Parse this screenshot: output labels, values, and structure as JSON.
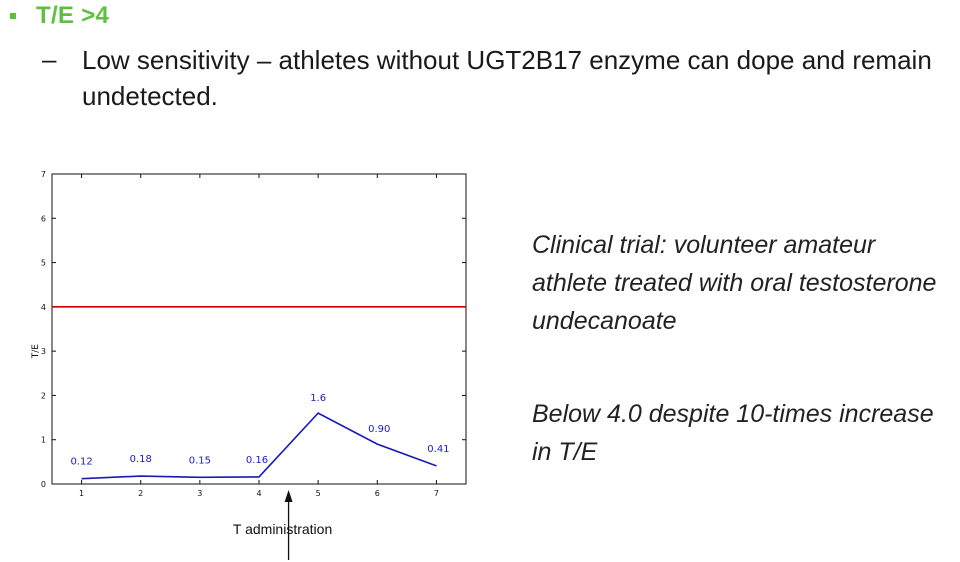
{
  "slide": {
    "bullet": "T/E >4",
    "sub_dash": "–",
    "sub_bullet": "Low sensitivity – athletes without UGT2B17 enzyme can dope and remain undetected.",
    "caption1": "Clinical trial: volunteer amateur athlete treated with oral testosterone undecanoate",
    "caption2": "Below 4.0 despite 10-times increase in T/E",
    "accent_color": "#5fbf3f"
  },
  "chart_data": {
    "type": "line",
    "x": [
      1,
      2,
      3,
      4,
      5,
      6,
      7
    ],
    "y": [
      0.12,
      0.18,
      0.15,
      0.16,
      1.6,
      0.9,
      0.41
    ],
    "data_labels": [
      "0.12",
      "0.18",
      "0.15",
      "0.16",
      "1.6",
      "0.90",
      "0.41"
    ],
    "ylabel": "T/E",
    "xlim": [
      0.5,
      7.5
    ],
    "ylim": [
      0,
      7
    ],
    "xticks": [
      "1",
      "2",
      "3",
      "4",
      "5",
      "6",
      "7"
    ],
    "yticks": [
      "0",
      "1",
      "2",
      "3",
      "4",
      "5",
      "6",
      "7"
    ],
    "threshold": 4,
    "series_color": "#1a1ab4",
    "threshold_color": "#cc0000",
    "annotation": {
      "text": "T administration",
      "x": 4.5
    },
    "grid": false
  }
}
